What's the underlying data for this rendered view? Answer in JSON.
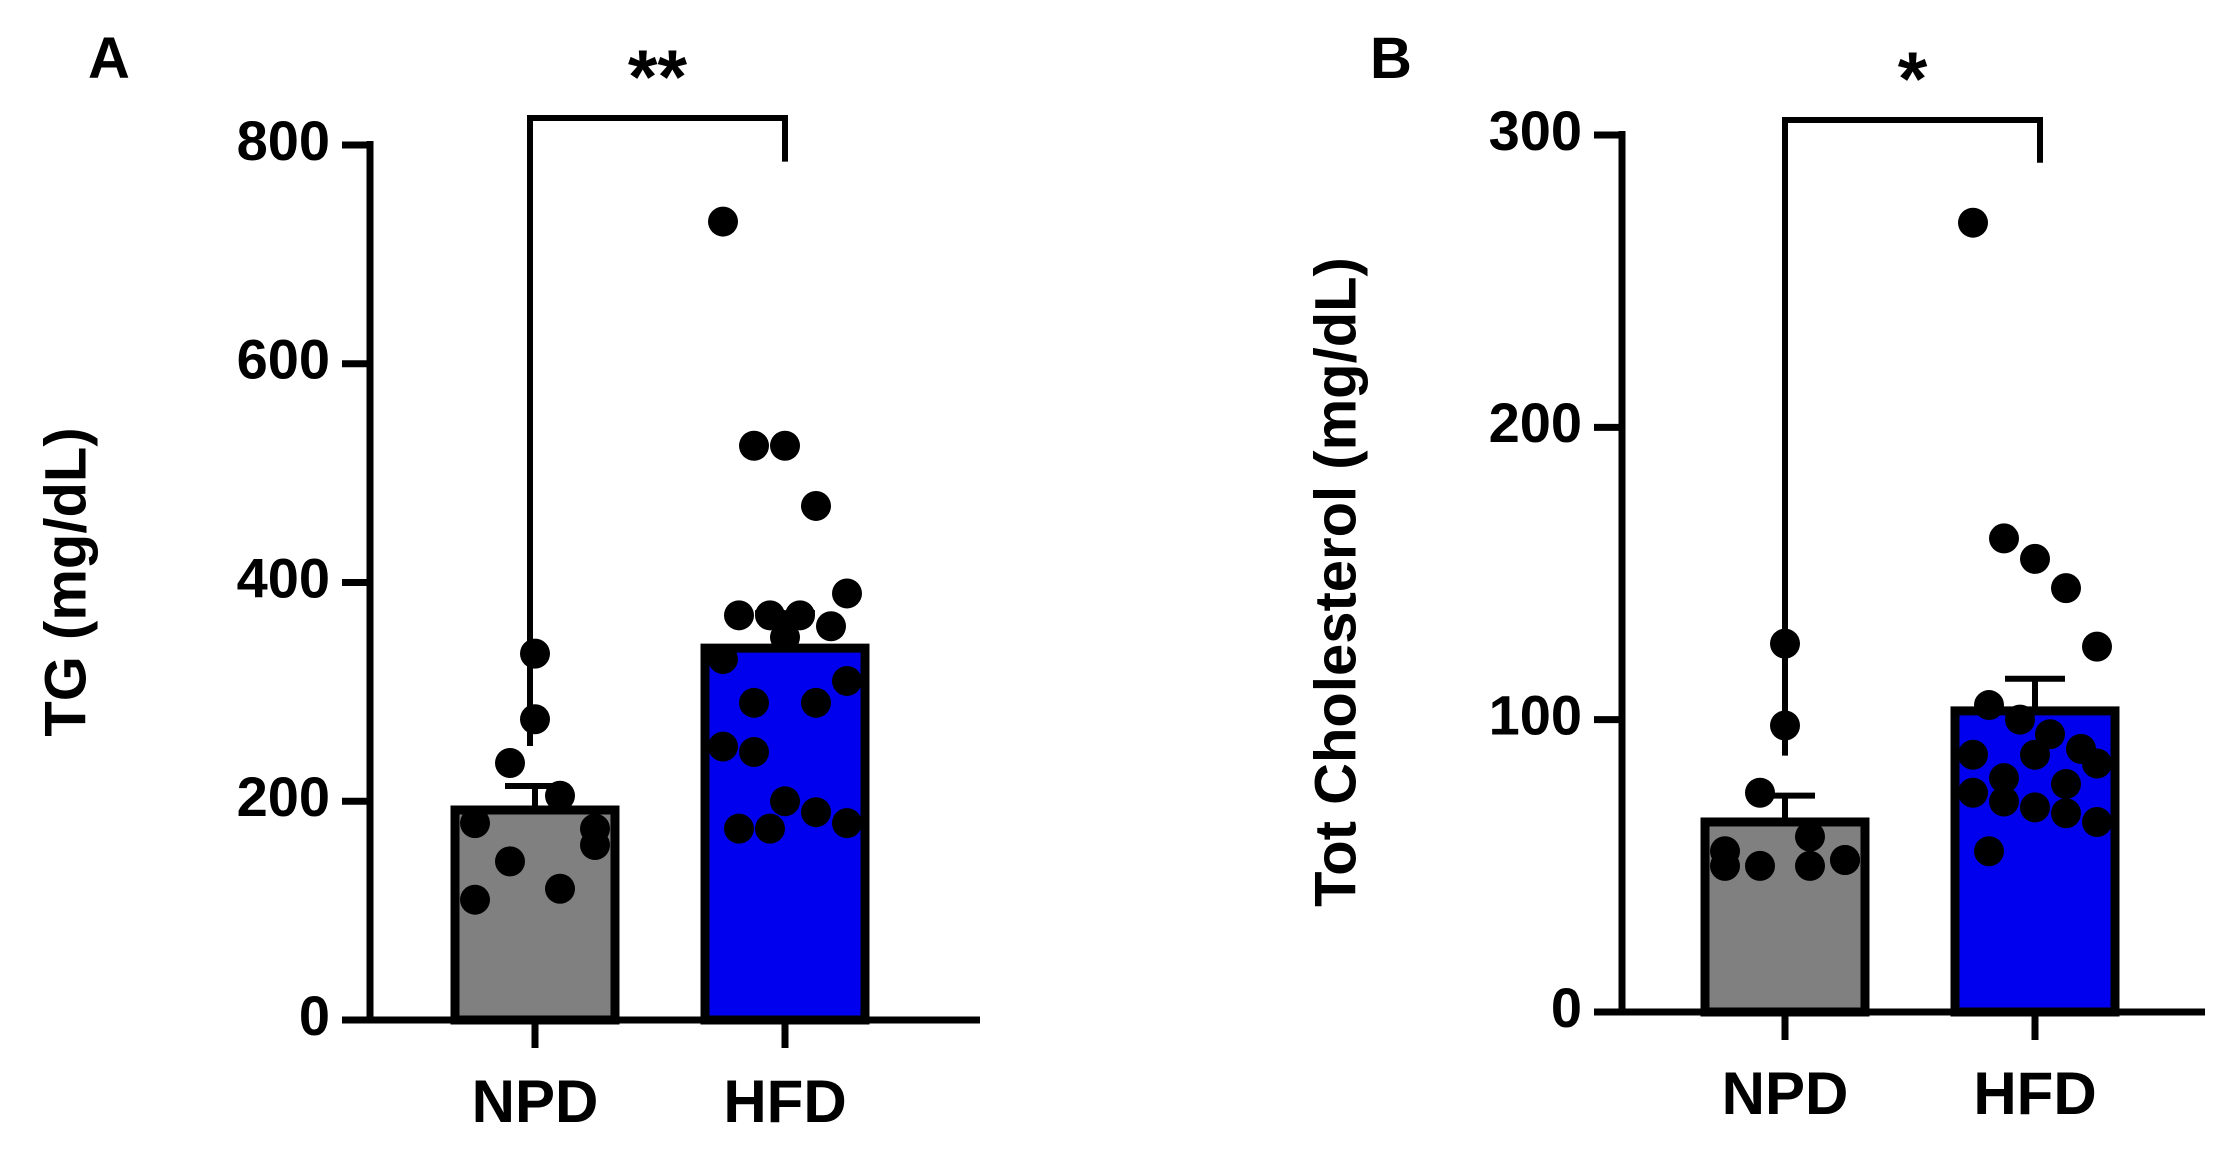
{
  "chart_data": [
    {
      "type": "bar",
      "panel_label": "A",
      "title": "",
      "xlabel": "",
      "ylabel": "TG (mg/dL)",
      "categories": [
        "NPD",
        "HFD"
      ],
      "values": [
        192,
        340
      ],
      "sem": [
        22,
        32
      ],
      "bar_colors": [
        "#808080",
        "#0000ee"
      ],
      "ylim": [
        0,
        800
      ],
      "yticks": [
        0,
        200,
        400,
        600,
        800
      ],
      "significance": "**",
      "grid": false,
      "points": [
        [
          335,
          275,
          235,
          205,
          180,
          175,
          145,
          120,
          110,
          160
        ],
        [
          730,
          525,
          525,
          470,
          390,
          370,
          370,
          370,
          360,
          350,
          330,
          310,
          290,
          290,
          250,
          245,
          200,
          190,
          180,
          175,
          175
        ]
      ]
    },
    {
      "type": "bar",
      "panel_label": "B",
      "title": "",
      "xlabel": "",
      "ylabel": "Tot Cholesterol (mg/dL)",
      "categories": [
        "NPD",
        "HFD"
      ],
      "values": [
        65,
        103
      ],
      "sem": [
        9,
        11
      ],
      "bar_colors": [
        "#808080",
        "#0000ee"
      ],
      "ylim": [
        0,
        300
      ],
      "yticks": [
        0,
        100,
        200,
        300
      ],
      "significance": "*",
      "grid": false,
      "points": [
        [
          126,
          98,
          75,
          60,
          55,
          52,
          50,
          50,
          50,
          52
        ],
        [
          270,
          162,
          155,
          145,
          125,
          105,
          100,
          95,
          90,
          88,
          88,
          85,
          80,
          78,
          75,
          72,
          70,
          68,
          65,
          55
        ]
      ]
    }
  ]
}
